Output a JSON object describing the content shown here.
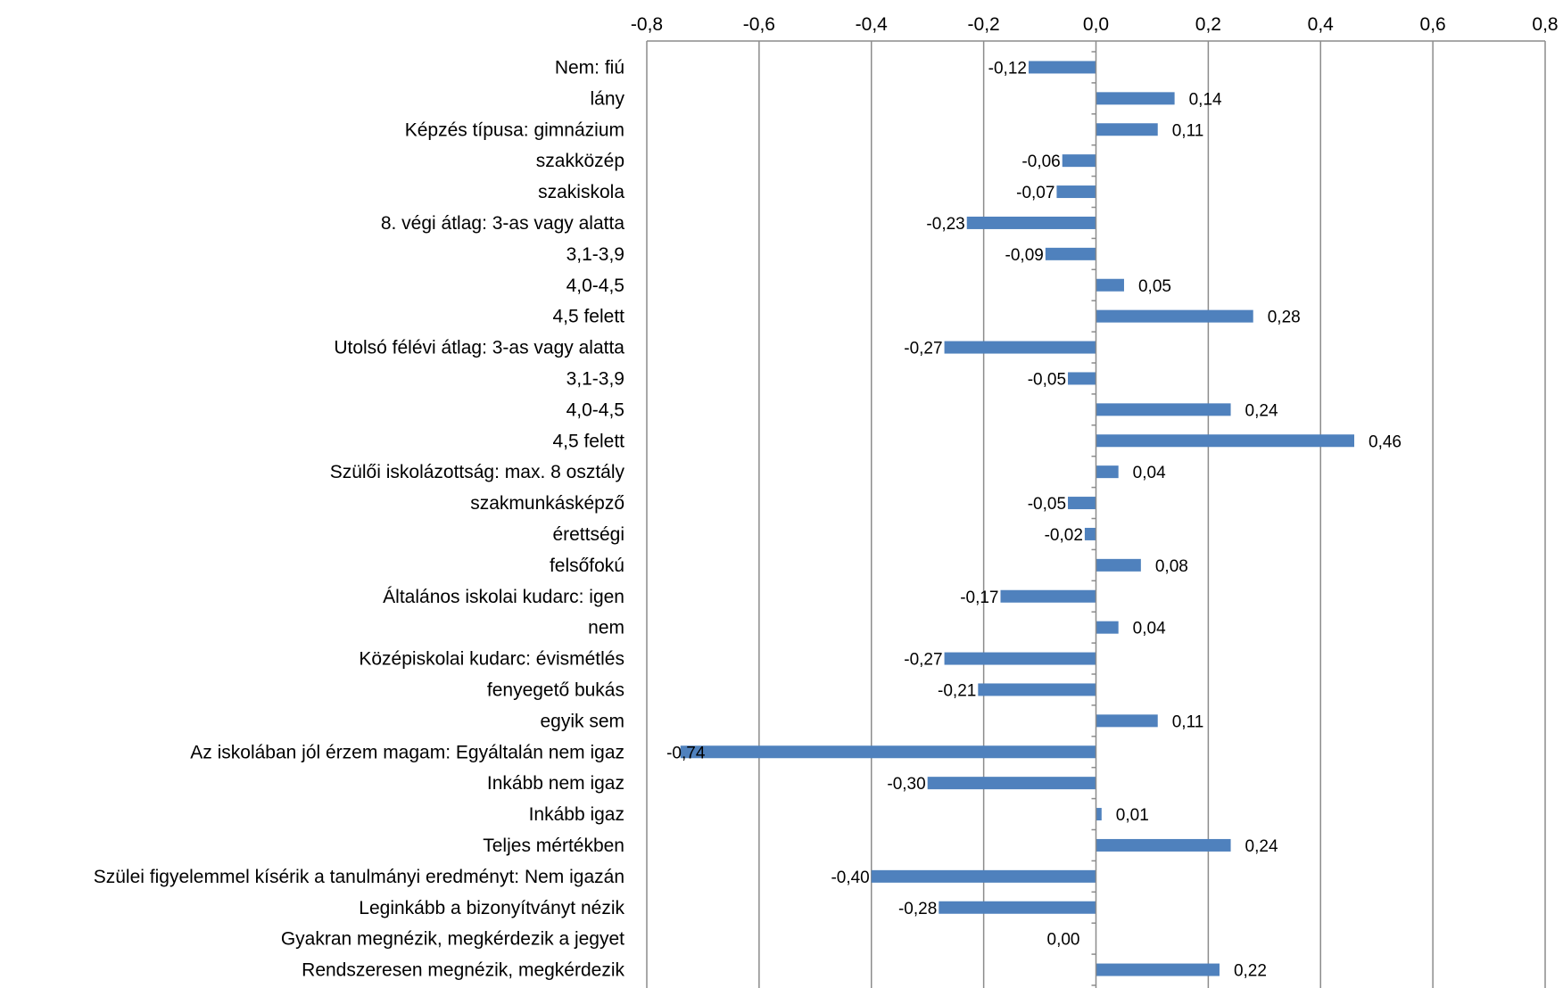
{
  "chart_data": {
    "type": "bar",
    "orientation": "horizontal",
    "title": "",
    "xlabel": "",
    "ylabel": "",
    "xlim": [
      -0.8,
      0.8
    ],
    "x_ticks": [
      -0.8,
      -0.6,
      -0.4,
      -0.2,
      0.0,
      0.2,
      0.4,
      0.6,
      0.8
    ],
    "x_tick_labels": [
      "-0,8",
      "-0,6",
      "-0,4",
      "-0,2",
      "0,0",
      "0,2",
      "0,4",
      "0,6",
      "0,8"
    ],
    "x_axis_position": "top",
    "grid": "vertical",
    "legend": "none",
    "bar_color": "#4f81bd",
    "categories": [
      "Nem: fiú",
      "lány",
      "Képzés típusa: gimnázium",
      "szakközép",
      "szakiskola",
      "8. végi átlag: 3-as vagy alatta",
      "3,1-3,9",
      "4,0-4,5",
      "4,5 felett",
      "Utolsó félévi átlag: 3-as vagy alatta",
      "3,1-3,9",
      "4,0-4,5",
      "4,5 felett",
      "Szülői iskolázottság: max. 8 osztály",
      "szakmunkásképző",
      "érettségi",
      "felsőfokú",
      "Általános iskolai kudarc: igen",
      "nem",
      "Középiskolai kudarc: évismétlés",
      "fenyegető bukás",
      "egyik sem",
      "Az iskolában jól érzem magam: Egyáltalán nem igaz",
      "Inkább nem igaz",
      "Inkább igaz",
      "Teljes mértékben",
      "Szülei figyelemmel kísérik a tanulmányi eredményt: Nem igazán",
      "Leginkább a bizonyítványt nézik",
      "Gyakran megnézik, megkérdezik a jegyet",
      "Rendszeresen megnézik, megkérdezik"
    ],
    "values": [
      -0.12,
      0.14,
      0.11,
      -0.06,
      -0.07,
      -0.23,
      -0.09,
      0.05,
      0.28,
      -0.27,
      -0.05,
      0.24,
      0.46,
      0.04,
      -0.05,
      -0.02,
      0.08,
      -0.17,
      0.04,
      -0.27,
      -0.21,
      0.11,
      -0.74,
      -0.3,
      0.01,
      0.24,
      -0.4,
      -0.28,
      0.0,
      0.22
    ],
    "value_labels": [
      "-0,12",
      "0,14",
      "0,11",
      "-0,06",
      "-0,07",
      "-0,23",
      "-0,09",
      "0,05",
      "0,28",
      "-0,27",
      "-0,05",
      "0,24",
      "0,46",
      "0,04",
      "-0,05",
      "-0,02",
      "0,08",
      "-0,17",
      "0,04",
      "-0,27",
      "-0,21",
      "0,11",
      "-0,74",
      "-0,30",
      "0,01",
      "0,24",
      "-0,40",
      "-0,28",
      "0,00",
      "0,22"
    ]
  }
}
